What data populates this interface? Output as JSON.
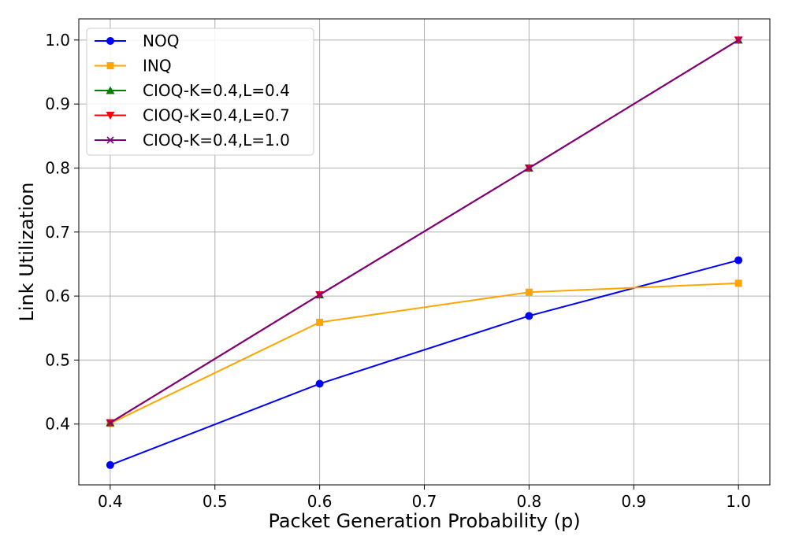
{
  "chart_data": {
    "type": "line",
    "title": "",
    "xlabel": "Packet Generation Probability (p)",
    "ylabel": "Link Utilization",
    "x": [
      0.4,
      0.6,
      0.8,
      1.0
    ],
    "xlim": [
      0.37,
      1.03
    ],
    "ylim": [
      0.305,
      1.033
    ],
    "x_ticks": [
      0.4,
      0.5,
      0.6,
      0.7,
      0.8,
      0.9,
      1.0
    ],
    "x_tick_labels": [
      "0.4",
      "0.5",
      "0.6",
      "0.7",
      "0.8",
      "0.9",
      "1.0"
    ],
    "y_ticks": [
      0.4,
      0.5,
      0.6,
      0.7,
      0.8,
      0.9,
      1.0
    ],
    "y_tick_labels": [
      "0.4",
      "0.5",
      "0.6",
      "0.7",
      "0.8",
      "0.9",
      "1.0"
    ],
    "grid": true,
    "legend_position": "top-left",
    "series": [
      {
        "name": "NOQ",
        "values": [
          0.336,
          0.463,
          0.569,
          0.656
        ],
        "color": "#0000ff",
        "marker": "circle"
      },
      {
        "name": "INQ",
        "values": [
          0.401,
          0.559,
          0.606,
          0.62
        ],
        "color": "#ffa500",
        "marker": "square"
      },
      {
        "name": "CIOQ-K=0.4,L=0.4",
        "values": [
          0.402,
          0.602,
          0.8,
          1.0
        ],
        "color": "#008000",
        "marker": "triangle-up"
      },
      {
        "name": "CIOQ-K=0.4,L=0.7",
        "values": [
          0.402,
          0.602,
          0.8,
          1.0
        ],
        "color": "#ff0000",
        "marker": "triangle-down"
      },
      {
        "name": "CIOQ-K=0.4,L=1.0",
        "values": [
          0.402,
          0.602,
          0.8,
          1.0
        ],
        "color": "#800080",
        "marker": "x"
      }
    ]
  }
}
